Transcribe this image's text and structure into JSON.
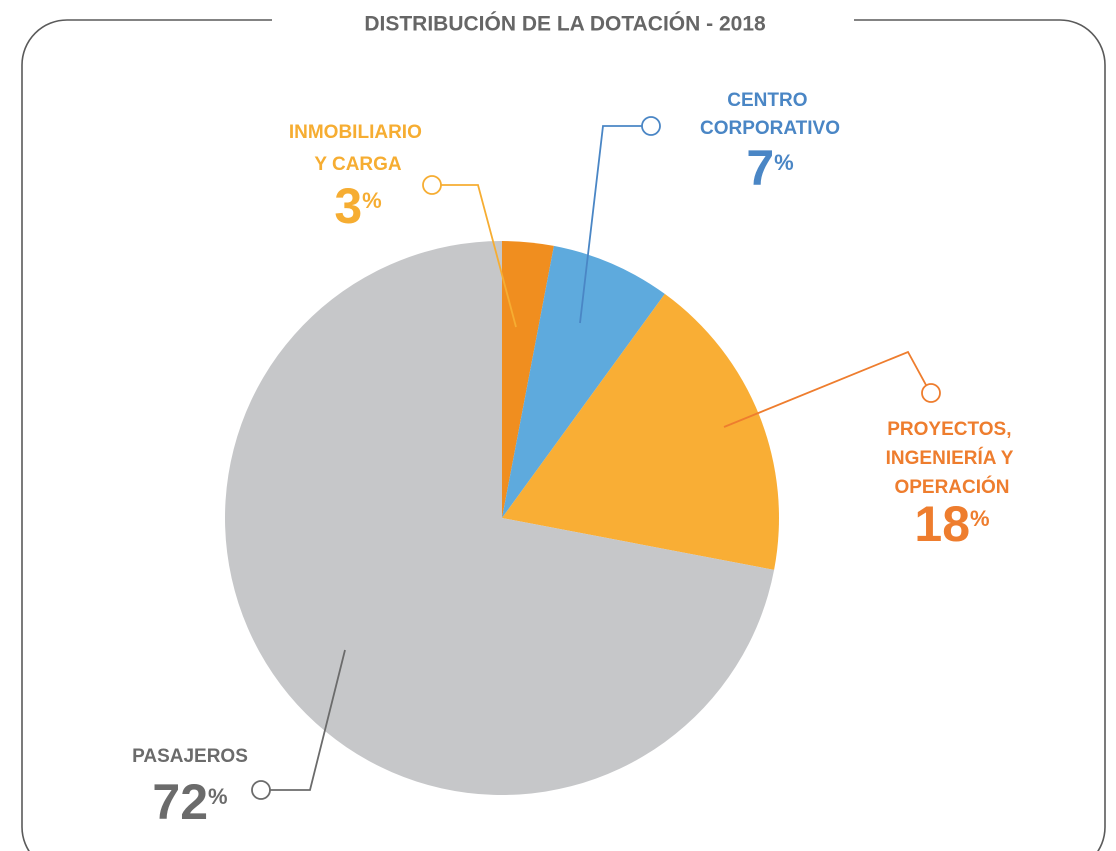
{
  "chart_data": {
    "type": "pie",
    "title": "DISTRIBUCIÓN DE LA DOTACIÓN - 2018",
    "categories": [
      "INMOBILIARIO Y CARGA",
      "CENTRO CORPORATIVO",
      "PROYECTOS, INGENIERÍA Y OPERACIÓN",
      "PASAJEROS"
    ],
    "values": [
      3,
      7,
      18,
      72
    ],
    "value_labels": [
      "3%",
      "7%",
      "18%",
      "72%"
    ],
    "colors": [
      "#f08e1f",
      "#5eaadd",
      "#f9ae35",
      "#c6c7c9"
    ],
    "label_colors": [
      "#f6ad32",
      "#4a86c5",
      "#ee7d2e",
      "#6b6b6b"
    ]
  }
}
